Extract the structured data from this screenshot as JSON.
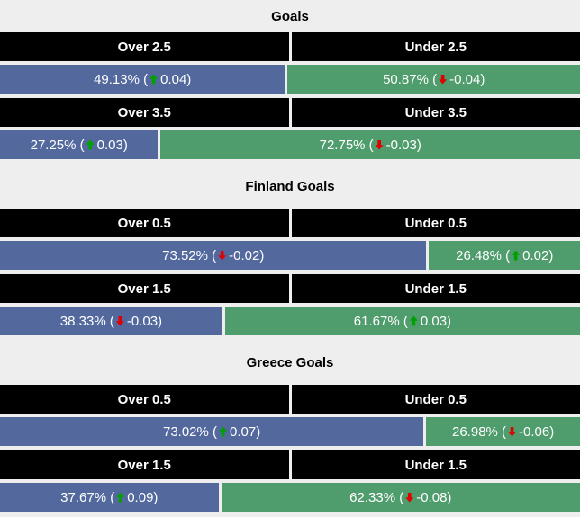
{
  "page": {
    "background": "#eeeeee"
  },
  "colors": {
    "over_bar": "#53699E",
    "under_bar": "#4F9C6C",
    "header_bg": "#000000",
    "header_text": "#ffffff",
    "bar_text": "#ffffff",
    "title_text": "#000000",
    "up_arrow": "#00A000",
    "down_arrow": "#E00000"
  },
  "sections": [
    {
      "title": "Goals",
      "rows": [
        {
          "over_header": "Over 2.5",
          "under_header": "Under 2.5",
          "over": {
            "width": 49.13,
            "text_before": "49.13% (",
            "trend": "up",
            "text_after": " 0.04)"
          },
          "under": {
            "width": 50.87,
            "text_before": "50.87% (",
            "trend": "down",
            "text_after": " -0.04)"
          }
        },
        {
          "over_header": "Over 3.5",
          "under_header": "Under 3.5",
          "over": {
            "width": 27.25,
            "text_before": "27.25% (",
            "trend": "up",
            "text_after": " 0.03)"
          },
          "under": {
            "width": 72.75,
            "text_before": "72.75% (",
            "trend": "down",
            "text_after": " -0.03)"
          }
        }
      ]
    },
    {
      "title": "Finland Goals",
      "rows": [
        {
          "over_header": "Over 0.5",
          "under_header": "Under 0.5",
          "over": {
            "width": 73.52,
            "text_before": "73.52% (",
            "trend": "down",
            "text_after": " -0.02)"
          },
          "under": {
            "width": 26.48,
            "text_before": "26.48% (",
            "trend": "up",
            "text_after": " 0.02)"
          }
        },
        {
          "over_header": "Over 1.5",
          "under_header": "Under 1.5",
          "over": {
            "width": 38.33,
            "text_before": "38.33% (",
            "trend": "down",
            "text_after": " -0.03)"
          },
          "under": {
            "width": 61.67,
            "text_before": "61.67% (",
            "trend": "up",
            "text_after": " 0.03)"
          }
        }
      ]
    },
    {
      "title": "Greece Goals",
      "rows": [
        {
          "over_header": "Over 0.5",
          "under_header": "Under 0.5",
          "over": {
            "width": 73.02,
            "text_before": "73.02% (",
            "trend": "up",
            "text_after": " 0.07)"
          },
          "under": {
            "width": 26.98,
            "text_before": "26.98% (",
            "trend": "down",
            "text_after": " -0.06)"
          }
        },
        {
          "over_header": "Over 1.5",
          "under_header": "Under 1.5",
          "over": {
            "width": 37.67,
            "text_before": "37.67% (",
            "trend": "up",
            "text_after": " 0.09)"
          },
          "under": {
            "width": 62.33,
            "text_before": "62.33% (",
            "trend": "down",
            "text_after": " -0.08)"
          }
        }
      ]
    }
  ],
  "chart_data": {
    "type": "bar",
    "subtype": "paired horizontal percentage bars (over/under probabilities with change deltas)",
    "xlim": [
      0,
      100
    ],
    "grid": false,
    "legend": null,
    "groups": [
      {
        "section": "Goals",
        "market": "Over/Under 2.5",
        "over_pct": 49.13,
        "over_delta": 0.04,
        "under_pct": 50.87,
        "under_delta": -0.04
      },
      {
        "section": "Goals",
        "market": "Over/Under 3.5",
        "over_pct": 27.25,
        "over_delta": 0.03,
        "under_pct": 72.75,
        "under_delta": -0.03
      },
      {
        "section": "Finland Goals",
        "market": "Over/Under 0.5",
        "over_pct": 73.52,
        "over_delta": -0.02,
        "under_pct": 26.48,
        "under_delta": 0.02
      },
      {
        "section": "Finland Goals",
        "market": "Over/Under 1.5",
        "over_pct": 38.33,
        "over_delta": -0.03,
        "under_pct": 61.67,
        "under_delta": 0.03
      },
      {
        "section": "Greece Goals",
        "market": "Over/Under 0.5",
        "over_pct": 73.02,
        "over_delta": 0.07,
        "under_pct": 26.98,
        "under_delta": -0.06
      },
      {
        "section": "Greece Goals",
        "market": "Over/Under 1.5",
        "over_pct": 37.67,
        "over_delta": 0.09,
        "under_pct": 62.33,
        "under_delta": -0.08
      }
    ]
  }
}
